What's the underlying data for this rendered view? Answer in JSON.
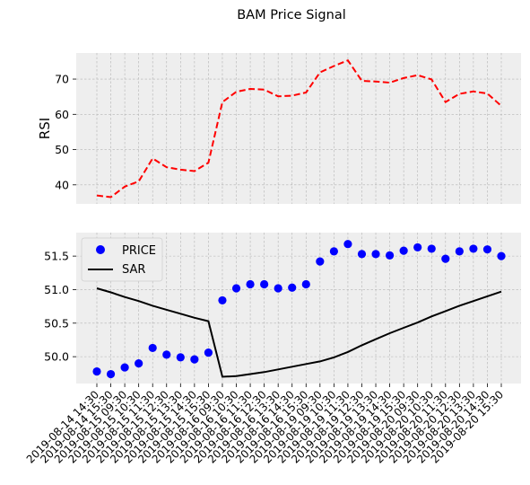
{
  "title": "BAM Price Signal",
  "colors": {
    "background": "#eeeeee",
    "grid": "#b4b4b4",
    "rsi": "#ff0000",
    "price": "#0000ff",
    "sar": "#000000"
  },
  "chart_data": [
    {
      "type": "line",
      "panel": "top",
      "xlabel": "",
      "ylabel": "RSI",
      "ylim": [
        34.6,
        77.4
      ],
      "yticks": [
        40,
        50,
        60,
        70
      ],
      "grid": true,
      "legend": null,
      "series": [
        {
          "style": "dashed",
          "values": [
            37.0,
            36.5,
            39.5,
            41.0,
            47.5,
            45.0,
            44.3,
            43.9,
            46.3,
            63.5,
            66.4,
            67.2,
            67.0,
            65.1,
            65.3,
            66.2,
            71.9,
            73.7,
            75.3,
            69.5,
            69.3,
            69.0,
            70.3,
            71.1,
            69.9,
            63.5,
            65.8,
            66.5,
            65.9,
            62.4
          ]
        }
      ]
    },
    {
      "type": "scatter+line",
      "panel": "bottom",
      "xlabel": "",
      "ylabel": "",
      "ylim": [
        49.6,
        51.85
      ],
      "yticks": [
        50.0,
        50.5,
        51.0,
        51.5
      ],
      "grid": true,
      "legend": "top-left",
      "categories": [
        "2019-08-14 14:30",
        "2019-08-14 15:30",
        "2019-08-15 09:30",
        "2019-08-15 10:30",
        "2019-08-15 11:30",
        "2019-08-15 12:30",
        "2019-08-15 13:30",
        "2019-08-15 14:30",
        "2019-08-15 15:30",
        "2019-08-16 09:30",
        "2019-08-16 10:30",
        "2019-08-16 11:30",
        "2019-08-16 12:30",
        "2019-08-16 13:30",
        "2019-08-16 14:30",
        "2019-08-16 15:30",
        "2019-08-19 09:30",
        "2019-08-19 10:30",
        "2019-08-19 11:30",
        "2019-08-19 12:30",
        "2019-08-19 13:30",
        "2019-08-19 14:30",
        "2019-08-19 15:30",
        "2019-08-20 09:30",
        "2019-08-20 10:30",
        "2019-08-20 11:30",
        "2019-08-20 12:30",
        "2019-08-20 13:30",
        "2019-08-20 14:30",
        "2019-08-20 15:30"
      ],
      "series": [
        {
          "name": "PRICE",
          "style": "markers",
          "values": [
            49.78,
            49.74,
            49.84,
            49.9,
            50.13,
            50.03,
            49.99,
            49.96,
            50.06,
            50.84,
            51.02,
            51.08,
            51.08,
            51.02,
            51.03,
            51.08,
            51.42,
            51.57,
            51.68,
            51.53,
            51.53,
            51.51,
            51.58,
            51.63,
            51.61,
            51.46,
            51.57,
            51.61,
            51.6,
            51.5
          ]
        },
        {
          "name": "SAR",
          "style": "solid",
          "values": [
            51.02,
            50.96,
            50.89,
            50.83,
            50.76,
            50.7,
            50.64,
            50.58,
            50.53,
            49.7,
            49.71,
            49.74,
            49.77,
            49.81,
            49.85,
            49.89,
            49.93,
            49.99,
            50.07,
            50.17,
            50.26,
            50.35,
            50.43,
            50.51,
            50.6,
            50.68,
            50.76,
            50.83,
            50.9,
            50.97
          ]
        }
      ]
    }
  ]
}
